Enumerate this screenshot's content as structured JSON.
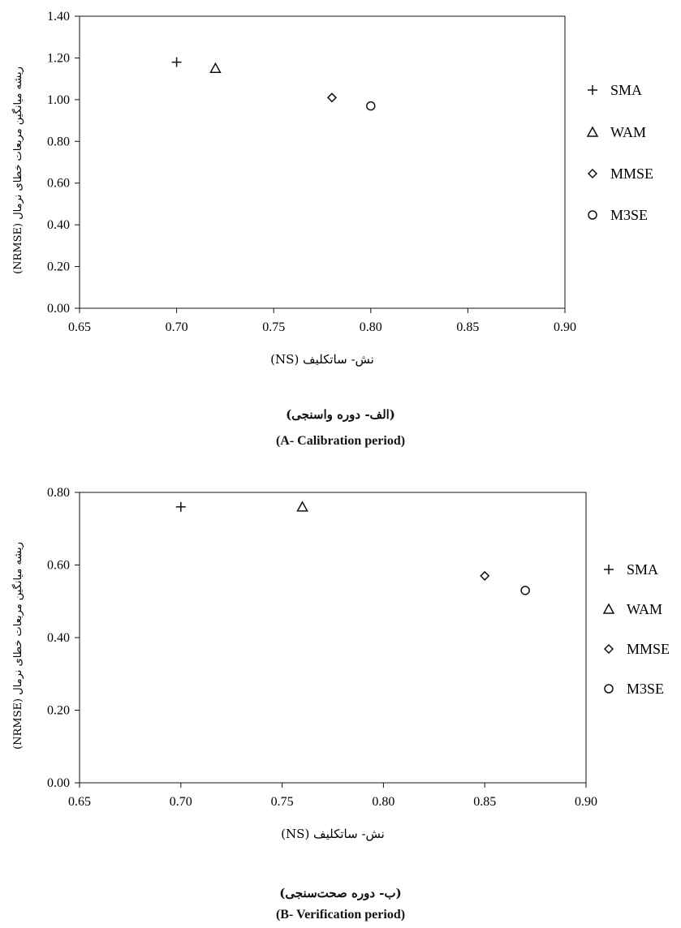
{
  "chart_data": [
    {
      "type": "scatter",
      "xlabel": "نش- ساتکلیف (NS)",
      "ylabel": "(NRMSE) ریشه میانگین مربعات خطای نرمال",
      "xlim": [
        0.65,
        0.9
      ],
      "ylim": [
        0,
        1.4
      ],
      "x_ticks": [
        "0.65",
        "0.70",
        "0.75",
        "0.80",
        "0.85",
        "0.90"
      ],
      "y_ticks": [
        "0.00",
        "0.20",
        "0.40",
        "0.60",
        "0.80",
        "1.00",
        "1.20",
        "1.40"
      ],
      "grid": false,
      "legend": "right",
      "caption_fa": "(الف- دوره واسنجی)",
      "caption_en": "(A- Calibration period)",
      "series": [
        {
          "name": "SMA",
          "marker": "plus",
          "points": [
            {
              "x": 0.7,
              "y": 1.18
            }
          ]
        },
        {
          "name": "WAM",
          "marker": "triangle",
          "points": [
            {
              "x": 0.72,
              "y": 1.15
            }
          ]
        },
        {
          "name": "MMSE",
          "marker": "diamond",
          "points": [
            {
              "x": 0.78,
              "y": 1.01
            }
          ]
        },
        {
          "name": "M3SE",
          "marker": "circle",
          "points": [
            {
              "x": 0.8,
              "y": 0.97
            }
          ]
        }
      ]
    },
    {
      "type": "scatter",
      "xlabel": "نش- ساتکلیف (NS)",
      "ylabel": "(NRMSE) ریشه میانگین مربعات خطای نرمال",
      "xlim": [
        0.65,
        0.9
      ],
      "ylim": [
        0,
        0.8
      ],
      "x_ticks": [
        "0.65",
        "0.70",
        "0.75",
        "0.80",
        "0.85",
        "0.90"
      ],
      "y_ticks": [
        "0.00",
        "0.20",
        "0.40",
        "0.60",
        "0.80"
      ],
      "grid": false,
      "legend": "right",
      "caption_fa": "(ب- دوره صحت‌سنجی)",
      "caption_en": "(B- Verification period)",
      "series": [
        {
          "name": "SMA",
          "marker": "plus",
          "points": [
            {
              "x": 0.7,
              "y": 0.76
            }
          ]
        },
        {
          "name": "WAM",
          "marker": "triangle",
          "points": [
            {
              "x": 0.76,
              "y": 0.76
            }
          ]
        },
        {
          "name": "MMSE",
          "marker": "diamond",
          "points": [
            {
              "x": 0.85,
              "y": 0.57
            }
          ]
        },
        {
          "name": "M3SE",
          "marker": "circle",
          "points": [
            {
              "x": 0.87,
              "y": 0.53
            }
          ]
        }
      ]
    }
  ]
}
